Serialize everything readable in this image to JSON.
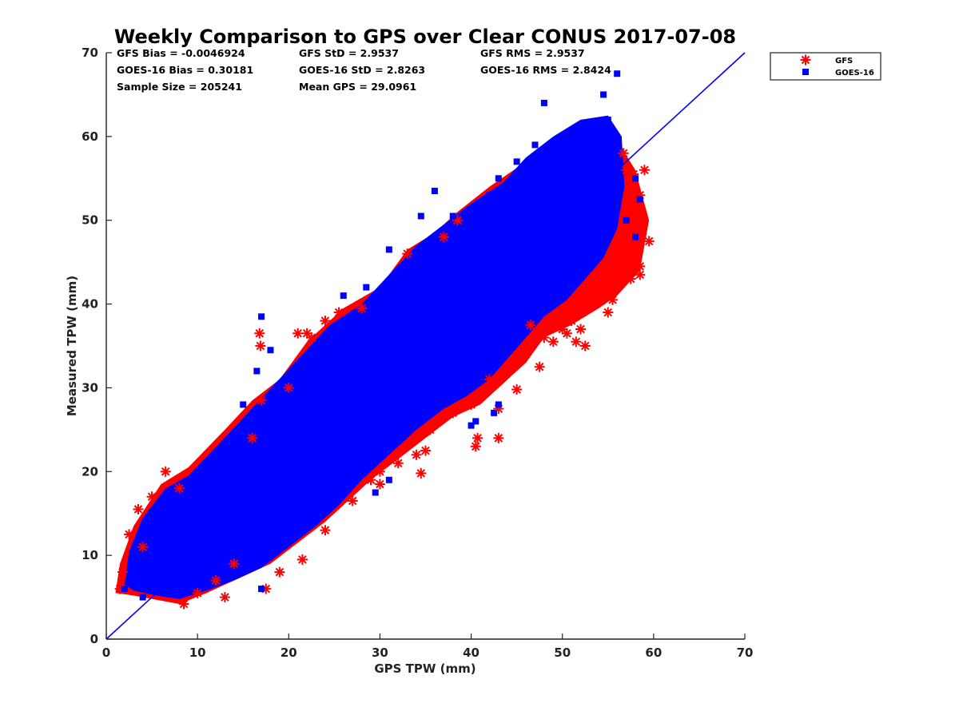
{
  "chart_data": {
    "type": "scatter",
    "title": "Weekly Comparison to GPS over Clear CONUS 2017-07-08",
    "xlabel": "GPS TPW (mm)",
    "ylabel": "Measured TPW (mm)",
    "xlim": [
      0,
      70
    ],
    "ylim": [
      0,
      70
    ],
    "xticks": [
      "0",
      "10",
      "20",
      "30",
      "40",
      "50",
      "60",
      "70"
    ],
    "yticks": [
      "0",
      "10",
      "20",
      "30",
      "40",
      "50",
      "60",
      "70"
    ],
    "grid": false,
    "legend_position": "outside-top-right",
    "stats": [
      "GFS Bias = -0.0046924",
      "GFS StD = 2.9537",
      "GFS RMS = 2.9537",
      "GOES-16 Bias = 0.30181",
      "GOES-16 StD = 2.8263",
      "GOES-16 RMS = 2.8424",
      "Sample Size = 205241",
      "Mean GPS = 29.0961"
    ],
    "reference_line": {
      "type": "one-to-one",
      "from": [
        0,
        0
      ],
      "to": [
        70,
        70
      ],
      "color": "#0000ff"
    },
    "series": [
      {
        "name": "GFS",
        "marker": "asterisk",
        "color": "#ff0000",
        "points": [
          [
            1.5,
            6
          ],
          [
            1.8,
            8
          ],
          [
            2.5,
            12.5
          ],
          [
            3.5,
            15.5
          ],
          [
            4,
            11
          ],
          [
            5,
            17
          ],
          [
            6.5,
            20
          ],
          [
            8,
            18
          ],
          [
            8.5,
            4.2
          ],
          [
            10,
            5.5
          ],
          [
            12,
            7
          ],
          [
            13,
            5
          ],
          [
            14,
            9
          ],
          [
            16,
            24
          ],
          [
            16.8,
            36.5
          ],
          [
            16.9,
            35
          ],
          [
            17.5,
            6
          ],
          [
            17,
            28.5
          ],
          [
            19,
            8
          ],
          [
            20,
            30
          ],
          [
            21,
            36.5
          ],
          [
            21.5,
            9.5
          ],
          [
            22,
            36.5
          ],
          [
            22.5,
            36
          ],
          [
            24,
            13
          ],
          [
            24,
            38
          ],
          [
            25.5,
            39
          ],
          [
            27,
            16.5
          ],
          [
            28,
            39.5
          ],
          [
            29,
            19
          ],
          [
            30,
            18.5
          ],
          [
            30,
            20
          ],
          [
            32,
            21
          ],
          [
            33,
            46
          ],
          [
            34,
            22
          ],
          [
            35,
            22.5
          ],
          [
            34.5,
            19.8
          ],
          [
            35.5,
            25
          ],
          [
            37,
            48
          ],
          [
            38,
            27
          ],
          [
            38.5,
            50
          ],
          [
            40,
            28
          ],
          [
            40.5,
            23
          ],
          [
            40.7,
            24
          ],
          [
            42,
            31
          ],
          [
            43,
            24
          ],
          [
            43,
            27.5
          ],
          [
            45,
            29.8
          ],
          [
            46,
            34
          ],
          [
            46.5,
            37.5
          ],
          [
            47.5,
            32.5
          ],
          [
            48,
            36
          ],
          [
            49,
            35.5
          ],
          [
            50,
            37
          ],
          [
            50.5,
            36.5
          ],
          [
            51,
            38
          ],
          [
            51.5,
            35.5
          ],
          [
            52,
            37
          ],
          [
            52.5,
            35
          ],
          [
            53,
            40
          ],
          [
            54,
            42
          ],
          [
            55,
            44
          ],
          [
            55,
            39
          ],
          [
            55.5,
            40.5
          ],
          [
            56,
            47
          ],
          [
            56.5,
            45
          ],
          [
            56.7,
            58
          ],
          [
            57,
            56
          ],
          [
            57.5,
            44
          ],
          [
            57.5,
            43
          ],
          [
            58,
            50
          ],
          [
            58.5,
            44.5
          ],
          [
            58.5,
            43.5
          ],
          [
            58,
            48
          ],
          [
            59,
            56
          ],
          [
            59.5,
            47.5
          ],
          [
            58.5,
            53
          ],
          [
            57.8,
            55.5
          ],
          [
            58.2,
            51
          ]
        ]
      },
      {
        "name": "GOES-16",
        "marker": "square",
        "color": "#0000ff",
        "points": [
          [
            2,
            6
          ],
          [
            3,
            9
          ],
          [
            4,
            5
          ],
          [
            5,
            7
          ],
          [
            6,
            12
          ],
          [
            7,
            10
          ],
          [
            8,
            15
          ],
          [
            9,
            6
          ],
          [
            10,
            12
          ],
          [
            11,
            14
          ],
          [
            12,
            16
          ],
          [
            13,
            11
          ],
          [
            14,
            19
          ],
          [
            15,
            21
          ],
          [
            16,
            17
          ],
          [
            17,
            23
          ],
          [
            18,
            25
          ],
          [
            19,
            20
          ],
          [
            20,
            27
          ],
          [
            21,
            24
          ],
          [
            22,
            29
          ],
          [
            23,
            31
          ],
          [
            24,
            28
          ],
          [
            25,
            33
          ],
          [
            26,
            30
          ],
          [
            27,
            35
          ],
          [
            28,
            37
          ],
          [
            29,
            32
          ],
          [
            30,
            39
          ],
          [
            31,
            36
          ],
          [
            32,
            41
          ],
          [
            33,
            43
          ],
          [
            34,
            38
          ],
          [
            35,
            45
          ],
          [
            36,
            42
          ],
          [
            37,
            47
          ],
          [
            38,
            49
          ],
          [
            39,
            44
          ],
          [
            40,
            51
          ],
          [
            41,
            46
          ],
          [
            42,
            53
          ],
          [
            43,
            55
          ],
          [
            44,
            50
          ],
          [
            45,
            57
          ],
          [
            46,
            52
          ],
          [
            47,
            59
          ],
          [
            48,
            56
          ],
          [
            49,
            58
          ],
          [
            50,
            60
          ],
          [
            51,
            55
          ],
          [
            52,
            61
          ],
          [
            53,
            57
          ],
          [
            54,
            59
          ],
          [
            55,
            62
          ],
          [
            56,
            54
          ],
          [
            56,
            67.5
          ],
          [
            48,
            64
          ],
          [
            54.5,
            65
          ],
          [
            36,
            53.5
          ],
          [
            38,
            50.5
          ],
          [
            33,
            44.5
          ],
          [
            18,
            34.5
          ],
          [
            16.5,
            32
          ],
          [
            15,
            28
          ],
          [
            17,
            38.5
          ],
          [
            26,
            41
          ],
          [
            28.5,
            42
          ],
          [
            31,
            46.5
          ],
          [
            34.5,
            50.5
          ],
          [
            40.5,
            26
          ],
          [
            42.5,
            27
          ],
          [
            43,
            28
          ],
          [
            37,
            28.5
          ],
          [
            40,
            25.5
          ],
          [
            17,
            6
          ],
          [
            31,
            19
          ],
          [
            29.5,
            17.5
          ],
          [
            58,
            48
          ],
          [
            58.5,
            52.5
          ],
          [
            58,
            55
          ],
          [
            55,
            53
          ],
          [
            57,
            50
          ]
        ]
      }
    ]
  }
}
